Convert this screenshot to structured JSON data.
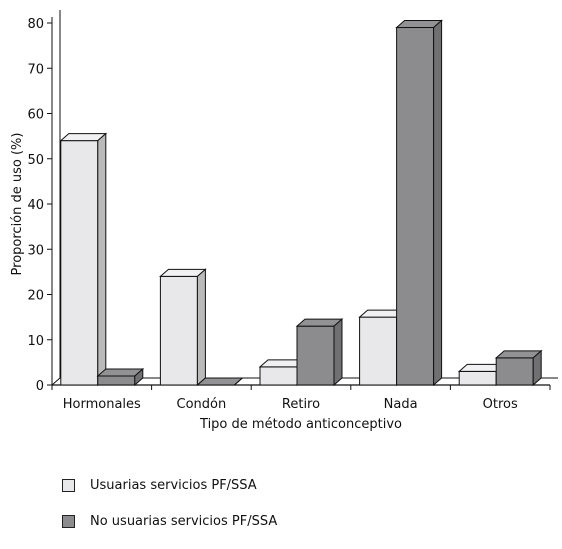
{
  "chart_data": {
    "type": "bar",
    "style": "3d",
    "xlabel": "Tipo de método anticonceptivo",
    "ylabel": "Proporción de uso (%)",
    "ylim": [
      0,
      80
    ],
    "yticks": [
      0,
      10,
      20,
      30,
      40,
      50,
      60,
      70,
      80
    ],
    "categories": [
      "Hormonales",
      "Condón",
      "Retiro",
      "Nada",
      "Otros"
    ],
    "series": [
      {
        "name": "Usuarias servicios PF/SSA",
        "color": "#e8e8ea",
        "values": [
          54,
          24,
          4,
          15,
          3
        ]
      },
      {
        "name": "No usuarias servicios PF/SSA",
        "color": "#8c8c8e",
        "values": [
          2,
          0,
          13,
          79,
          6
        ]
      }
    ],
    "grid": false,
    "legend_position": "bottom-left"
  }
}
